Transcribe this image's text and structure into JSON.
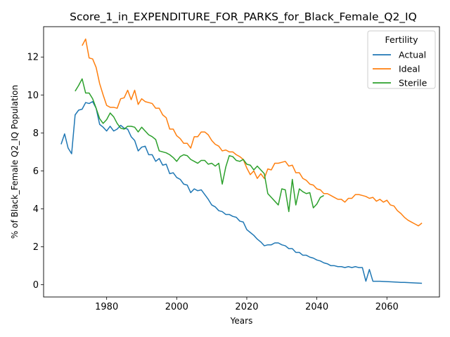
{
  "chart_data": {
    "type": "line",
    "title": "Score_1_in_EXPENDITURE_FOR_PARKS_for_Black_Female_Q2_IQ",
    "xlabel": "Years",
    "ylabel": "% of Black_Female Q2_IQ Population",
    "xlim": [
      1962,
      2075
    ],
    "ylim": [
      -0.65,
      13.6
    ],
    "x_ticks": [
      1980,
      2000,
      2020,
      2040,
      2060
    ],
    "y_ticks": [
      0,
      2,
      4,
      6,
      8,
      10,
      12
    ],
    "grid": false,
    "legend": {
      "title": "Fertility",
      "placement": "top-right"
    },
    "colors": {
      "Actual": "#1f77b4",
      "Ideal": "#ff7f0e",
      "Sterile": "#2ca02c"
    },
    "series": [
      {
        "name": "Actual",
        "x": [
          1967,
          1968,
          1969,
          1970,
          1971,
          1972,
          1973,
          1974,
          1975,
          1976,
          1977,
          1978,
          1979,
          1980,
          1981,
          1982,
          1983,
          1984,
          1985,
          1986,
          1987,
          1988,
          1989,
          1990,
          1991,
          1992,
          1993,
          1994,
          1995,
          1996,
          1997,
          1998,
          1999,
          2000,
          2001,
          2002,
          2003,
          2004,
          2005,
          2006,
          2007,
          2008,
          2009,
          2010,
          2011,
          2012,
          2013,
          2014,
          2015,
          2016,
          2017,
          2018,
          2019,
          2020,
          2021,
          2022,
          2023,
          2024,
          2025,
          2026,
          2027,
          2028,
          2029,
          2030,
          2031,
          2032,
          2033,
          2034,
          2035,
          2036,
          2037,
          2038,
          2039,
          2040,
          2041,
          2042,
          2043,
          2044,
          2045,
          2046,
          2047,
          2048,
          2049,
          2050,
          2051,
          2052,
          2053,
          2054,
          2055,
          2056,
          2057,
          2058,
          2059,
          2060,
          2061,
          2062,
          2063,
          2064,
          2065,
          2066,
          2067,
          2068,
          2069,
          2070
        ],
        "y": [
          7.4,
          7.95,
          7.2,
          6.9,
          8.95,
          9.2,
          9.25,
          9.6,
          9.55,
          9.65,
          9.3,
          8.45,
          8.3,
          8.1,
          8.35,
          8.1,
          8.2,
          8.4,
          8.25,
          8.2,
          7.8,
          7.6,
          7.05,
          7.25,
          7.3,
          6.85,
          6.85,
          6.5,
          6.65,
          6.3,
          6.35,
          5.85,
          5.9,
          5.65,
          5.55,
          5.3,
          5.25,
          4.85,
          5.05,
          4.95,
          5.0,
          4.75,
          4.5,
          4.2,
          4.1,
          3.9,
          3.85,
          3.7,
          3.7,
          3.6,
          3.55,
          3.35,
          3.3,
          2.9,
          2.75,
          2.6,
          2.4,
          2.25,
          2.05,
          2.1,
          2.1,
          2.2,
          2.2,
          2.1,
          2.05,
          1.9,
          1.9,
          1.7,
          1.7,
          1.55,
          1.55,
          1.45,
          1.4,
          1.3,
          1.25,
          1.15,
          1.1,
          1.0,
          1.0,
          0.95,
          0.95,
          0.9,
          0.95,
          0.9,
          0.95,
          0.9,
          0.9,
          0.18,
          0.8,
          0.18,
          0.18,
          0.18,
          0.17,
          0.16,
          0.15,
          0.14,
          0.13,
          0.12,
          0.12,
          0.11,
          0.1,
          0.09,
          0.08,
          0.07
        ]
      },
      {
        "name": "Ideal",
        "x": [
          1973,
          1974,
          1975,
          1976,
          1977,
          1978,
          1979,
          1980,
          1981,
          1982,
          1983,
          1984,
          1985,
          1986,
          1987,
          1988,
          1989,
          1990,
          1991,
          1992,
          1993,
          1994,
          1995,
          1996,
          1997,
          1998,
          1999,
          2000,
          2001,
          2002,
          2003,
          2004,
          2005,
          2006,
          2007,
          2008,
          2009,
          2010,
          2011,
          2012,
          2013,
          2014,
          2015,
          2016,
          2017,
          2018,
          2019,
          2020,
          2021,
          2022,
          2023,
          2024,
          2025,
          2026,
          2027,
          2028,
          2029,
          2030,
          2031,
          2032,
          2033,
          2034,
          2035,
          2036,
          2037,
          2038,
          2039,
          2040,
          2041,
          2042,
          2043,
          2044,
          2045,
          2046,
          2047,
          2048,
          2049,
          2050,
          2051,
          2052,
          2053,
          2054,
          2055,
          2056,
          2057,
          2058,
          2059,
          2060,
          2061,
          2062,
          2063,
          2064,
          2065,
          2066,
          2067,
          2068,
          2069,
          2070
        ],
        "y": [
          12.6,
          12.95,
          11.95,
          11.9,
          11.45,
          10.6,
          10.0,
          9.45,
          9.35,
          9.35,
          9.3,
          9.8,
          9.85,
          10.25,
          9.75,
          10.25,
          9.5,
          9.8,
          9.65,
          9.6,
          9.55,
          9.3,
          9.3,
          8.95,
          8.8,
          8.2,
          8.2,
          7.85,
          7.7,
          7.45,
          7.45,
          7.2,
          7.8,
          7.8,
          8.05,
          8.05,
          7.9,
          7.6,
          7.4,
          7.3,
          7.05,
          7.1,
          7.0,
          7.0,
          6.85,
          6.75,
          6.6,
          6.15,
          5.8,
          6.0,
          5.6,
          5.85,
          5.6,
          6.1,
          6.05,
          6.4,
          6.4,
          6.45,
          6.5,
          6.25,
          6.3,
          5.9,
          5.9,
          5.6,
          5.5,
          5.3,
          5.25,
          5.05,
          5.0,
          4.8,
          4.8,
          4.7,
          4.6,
          4.5,
          4.5,
          4.35,
          4.55,
          4.55,
          4.75,
          4.75,
          4.7,
          4.65,
          4.55,
          4.6,
          4.4,
          4.5,
          4.35,
          4.45,
          4.2,
          4.15,
          3.9,
          3.75,
          3.55,
          3.4,
          3.3,
          3.2,
          3.1,
          3.25
        ]
      },
      {
        "name": "Sterile",
        "x": [
          1971,
          1972,
          1973,
          1974,
          1975,
          1976,
          1977,
          1978,
          1979,
          1980,
          1981,
          1982,
          1983,
          1984,
          1985,
          1986,
          1987,
          1988,
          1989,
          1990,
          1991,
          1992,
          1993,
          1994,
          1995,
          1996,
          1997,
          1998,
          1999,
          2000,
          2001,
          2002,
          2003,
          2004,
          2005,
          2006,
          2007,
          2008,
          2009,
          2010,
          2011,
          2012,
          2013,
          2014,
          2015,
          2016,
          2017,
          2018,
          2019,
          2020,
          2021,
          2022,
          2023,
          2024,
          2025,
          2026,
          2027,
          2028,
          2029,
          2030,
          2031,
          2032,
          2033,
          2034,
          2035,
          2036,
          2037,
          2038,
          2039,
          2040,
          2041,
          2042
        ],
        "y": [
          10.2,
          10.5,
          10.85,
          10.1,
          10.1,
          9.8,
          9.3,
          8.75,
          8.5,
          8.7,
          9.05,
          8.85,
          8.5,
          8.25,
          8.2,
          8.35,
          8.35,
          8.3,
          8.05,
          8.3,
          8.1,
          7.9,
          7.8,
          7.65,
          7.05,
          7.0,
          6.95,
          6.85,
          6.7,
          6.5,
          6.75,
          6.85,
          6.8,
          6.6,
          6.5,
          6.4,
          6.55,
          6.55,
          6.35,
          6.4,
          6.25,
          6.4,
          5.3,
          6.2,
          6.8,
          6.75,
          6.55,
          6.5,
          6.6,
          6.35,
          6.3,
          6.05,
          6.25,
          6.05,
          5.85,
          4.8,
          4.6,
          4.4,
          4.2,
          5.05,
          5.0,
          3.85,
          5.55,
          4.2,
          5.05,
          4.9,
          4.8,
          4.85,
          4.05,
          4.25,
          4.6,
          4.7
        ]
      }
    ]
  }
}
